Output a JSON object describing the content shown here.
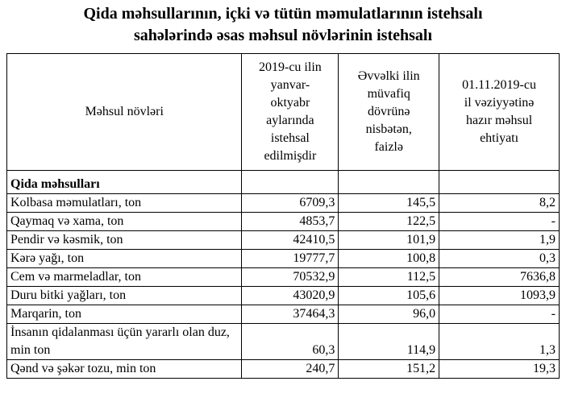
{
  "title": [
    "Qida məhsullarının, içki və tütün məmulatlarının istehsalı",
    "sahələrində əsas məhsul növlərinin istehsalı"
  ],
  "table": {
    "header": [
      [
        "Məhsul növləri"
      ],
      [
        "2019-cu ilin",
        "yanvar-",
        "oktyabr",
        "aylarında",
        "istehsal",
        "edilmişdir"
      ],
      [
        "Əvvəlki ilin",
        "müvafiq",
        "dövrünə",
        "nisbətən,",
        "faizlə"
      ],
      [
        "01.11.2019-cu",
        "il vəziyyətinə",
        "hazır məhsul",
        "ehtiyatı"
      ]
    ],
    "section": "Qida məhsulları",
    "rows": [
      [
        "Kolbasa məmulatları, ton",
        "6709,3",
        "145,5",
        "8,2"
      ],
      [
        "Qaymaq və xama, ton",
        "4853,7",
        "122,5",
        "-"
      ],
      [
        "Pendir və kəsmik, ton",
        "42410,5",
        "101,9",
        "1,9"
      ],
      [
        "Kərə yağı, ton",
        "19777,7",
        "100,8",
        "0,3"
      ],
      [
        "Cem və marmeladlar, ton",
        "70532,9",
        "112,5",
        "7636,8"
      ],
      [
        "Duru bitki yağları, ton",
        "43020,9",
        "105,6",
        "1093,9"
      ],
      [
        "Marqarin, ton",
        "37464,3",
        "96,0",
        "-"
      ],
      [
        "İnsanın qidalanması üçün yararlı olan duz, min ton",
        "60,3",
        "114,9",
        "1,3"
      ],
      [
        "Qənd və şəkər tozu, min ton",
        "240,7",
        "151,2",
        "19,3"
      ]
    ]
  }
}
